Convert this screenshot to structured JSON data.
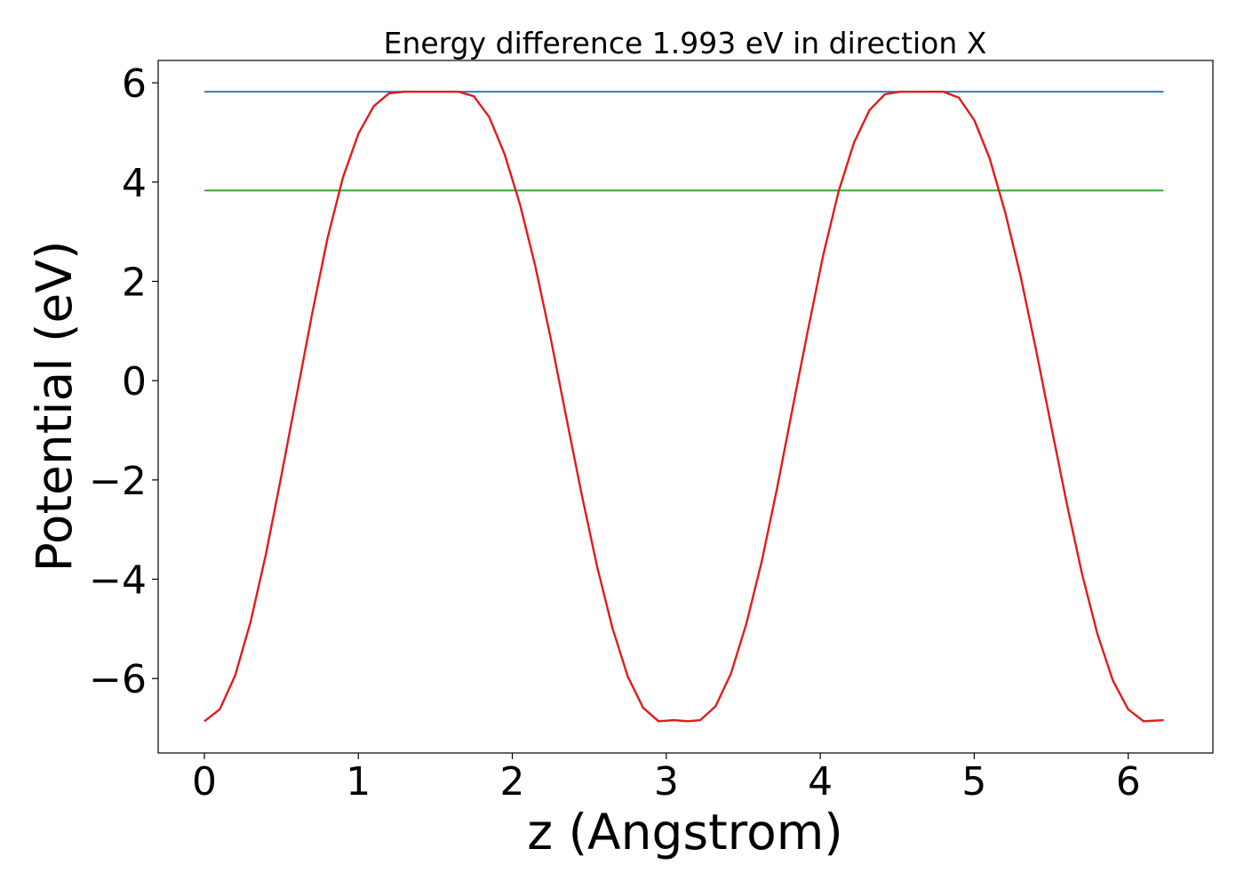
{
  "chart_data": {
    "type": "line",
    "title": "Energy difference 1.993 eV in direction X",
    "xlabel": "z (Angstrom)",
    "ylabel": "Potential (eV)",
    "xlim": [
      -0.3,
      6.55
    ],
    "ylim": [
      -7.5,
      6.45
    ],
    "xticks": [
      0,
      1,
      2,
      3,
      4,
      5,
      6
    ],
    "xtick_labels": [
      "0",
      "1",
      "2",
      "3",
      "4",
      "5",
      "6"
    ],
    "yticks": [
      -6,
      -4,
      -2,
      0,
      2,
      4,
      6
    ],
    "ytick_labels": [
      "−6",
      "−4",
      "−2",
      "0",
      "2",
      "4",
      "6"
    ],
    "grid": false,
    "legend": false,
    "series": [
      {
        "color": "#1f77b4",
        "x": [
          0,
          6.23
        ],
        "y": [
          5.82,
          5.82
        ]
      },
      {
        "color": "#2ca02c",
        "x": [
          0,
          6.23
        ],
        "y": [
          3.83,
          3.83
        ]
      },
      {
        "color": "#e31a1c",
        "x": [
          0.0,
          0.1,
          0.2,
          0.3,
          0.4,
          0.5,
          0.6,
          0.7,
          0.8,
          0.9,
          1.0,
          1.1,
          1.2,
          1.3,
          1.4,
          1.5,
          1.57,
          1.65,
          1.75,
          1.85,
          1.95,
          2.05,
          2.15,
          2.25,
          2.35,
          2.45,
          2.55,
          2.65,
          2.75,
          2.85,
          2.95,
          3.05,
          3.14,
          3.22,
          3.32,
          3.42,
          3.52,
          3.62,
          3.72,
          3.82,
          3.92,
          4.02,
          4.12,
          4.22,
          4.32,
          4.42,
          4.52,
          4.62,
          4.71,
          4.8,
          4.9,
          5.0,
          5.1,
          5.2,
          5.3,
          5.4,
          5.5,
          5.6,
          5.7,
          5.8,
          5.9,
          6.0,
          6.1,
          6.23
        ],
        "y": [
          -6.86,
          -6.62,
          -5.94,
          -4.86,
          -3.49,
          -1.92,
          -0.28,
          1.35,
          2.87,
          4.09,
          4.97,
          5.53,
          5.79,
          5.82,
          5.82,
          5.82,
          5.82,
          5.82,
          5.73,
          5.31,
          4.56,
          3.55,
          2.3,
          0.84,
          -0.73,
          -2.28,
          -3.74,
          -4.98,
          -5.96,
          -6.59,
          -6.86,
          -6.84,
          -6.86,
          -6.84,
          -6.56,
          -5.9,
          -4.9,
          -3.64,
          -2.16,
          -0.56,
          1.02,
          2.54,
          3.82,
          4.8,
          5.45,
          5.77,
          5.82,
          5.82,
          5.82,
          5.82,
          5.7,
          5.25,
          4.48,
          3.4,
          2.12,
          0.64,
          -0.92,
          -2.46,
          -3.89,
          -5.1,
          -6.04,
          -6.62,
          -6.86,
          -6.84
        ]
      }
    ]
  }
}
